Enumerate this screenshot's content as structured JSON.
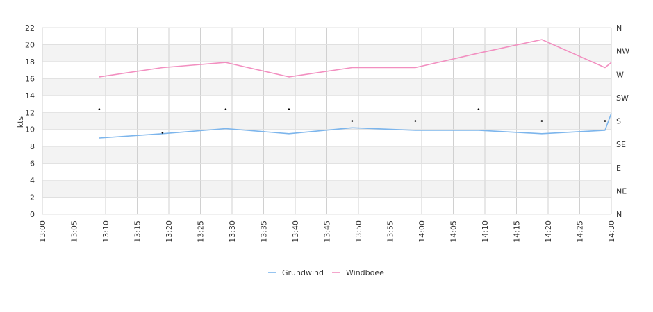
{
  "chart_data": {
    "type": "line",
    "ylabel": "kts",
    "ylim": [
      0,
      22
    ],
    "yticks": [
      0,
      2,
      4,
      6,
      8,
      10,
      12,
      14,
      16,
      18,
      20,
      22
    ],
    "y2ticks": [
      "N",
      "NE",
      "E",
      "SE",
      "S",
      "SW",
      "W",
      "NW",
      "N"
    ],
    "xticks": [
      "13:00",
      "13:05",
      "13:10",
      "13:15",
      "13:20",
      "13:25",
      "13:30",
      "13:35",
      "13:40",
      "13:45",
      "13:50",
      "13:55",
      "14:00",
      "14:05",
      "14:10",
      "14:15",
      "14:20",
      "14:25",
      "14:30"
    ],
    "x_range": [
      "13:00",
      "14:30"
    ],
    "grid": true,
    "legend_position": "bottom-center",
    "series": [
      {
        "name": "Grundwind",
        "color": "#7cb5ec",
        "points": [
          [
            "13:09",
            9.0
          ],
          [
            "13:19",
            9.5
          ],
          [
            "13:29",
            10.1
          ],
          [
            "13:39",
            9.5
          ],
          [
            "13:49",
            10.2
          ],
          [
            "13:59",
            9.9
          ],
          [
            "14:09",
            9.9
          ],
          [
            "14:19",
            9.5
          ],
          [
            "14:29",
            9.9
          ],
          [
            "14:30",
            11.9
          ]
        ]
      },
      {
        "name": "Windboee",
        "color": "#f28fc0",
        "points": [
          [
            "13:09",
            16.2
          ],
          [
            "13:19",
            17.3
          ],
          [
            "13:29",
            17.9
          ],
          [
            "13:39",
            16.2
          ],
          [
            "13:49",
            17.3
          ],
          [
            "13:59",
            17.3
          ],
          [
            "14:09",
            19.0
          ],
          [
            "14:19",
            20.6
          ],
          [
            "14:29",
            17.3
          ],
          [
            "14:30",
            17.9
          ]
        ]
      }
    ],
    "direction_markers": {
      "color": "#000000",
      "points": [
        [
          "13:09",
          "S-SW"
        ],
        [
          "13:19",
          "SE-S"
        ],
        [
          "13:29",
          "S-SW"
        ],
        [
          "13:39",
          "S-SW"
        ],
        [
          "13:49",
          "S"
        ],
        [
          "13:59",
          "S"
        ],
        [
          "14:09",
          "S-SW"
        ],
        [
          "14:19",
          "S"
        ],
        [
          "14:29",
          "S"
        ]
      ]
    }
  }
}
